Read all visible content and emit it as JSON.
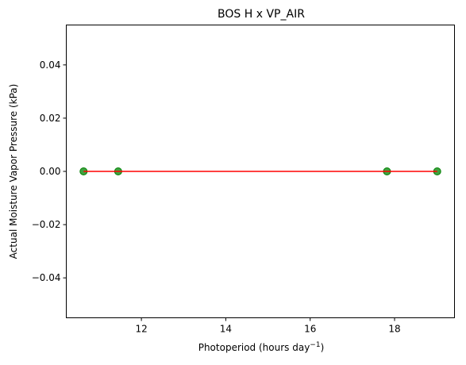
{
  "chart_data": {
    "type": "scatter",
    "title": "BOS H x VP_AIR",
    "xlabel_main": "Photoperiod (hours day",
    "xlabel_sup": "−1",
    "xlabel_end": ")",
    "ylabel": "Actual Moisture Vapor Pressure (kPa)",
    "xlim": [
      10.22,
      19.42
    ],
    "ylim": [
      -0.055,
      0.055
    ],
    "xticks": [
      12,
      14,
      16,
      18
    ],
    "xtick_labels": [
      "12",
      "14",
      "16",
      "18"
    ],
    "yticks": [
      0.04,
      0.02,
      0.0,
      -0.02,
      -0.04
    ],
    "ytick_labels": [
      "0.04",
      "0.02",
      "0.00",
      "−0.02",
      "−0.04"
    ],
    "series": [
      {
        "kind": "points",
        "color": "#008000",
        "x": [
          10.63,
          11.45,
          17.82,
          19.01
        ],
        "y": [
          0,
          0,
          0,
          0
        ]
      },
      {
        "kind": "fit-line",
        "color": "#ff0000",
        "x": [
          10.63,
          19.01
        ],
        "y": [
          0,
          0
        ]
      }
    ],
    "grid": false
  }
}
